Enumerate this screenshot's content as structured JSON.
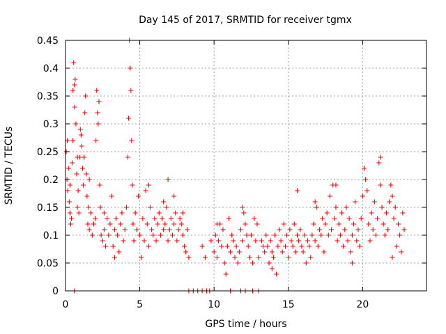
{
  "chart_data": {
    "type": "scatter",
    "title": "Day 145 of 2017, SRMTID for receiver tgmx",
    "xlabel": "GPS time / hours",
    "ylabel": "SRMTID / TECUs",
    "xlim": [
      0,
      24.3
    ],
    "ylim": [
      0,
      0.45
    ],
    "x_ticks": [
      0,
      5,
      10,
      15,
      20
    ],
    "x_tick_labels": [
      "0",
      "5",
      "10",
      "15",
      "20"
    ],
    "y_ticks": [
      0,
      0.05,
      0.1,
      0.15,
      0.2,
      0.25,
      0.3,
      0.35,
      0.4,
      0.45
    ],
    "y_tick_labels": [
      "0",
      "0.05",
      "0.1",
      "0.15",
      "0.2",
      "0.25",
      "0.3",
      "0.35",
      "0.4",
      "0.45"
    ],
    "grid": true,
    "marker_color": "#ff0000",
    "series": [
      {
        "name": "SRMTID",
        "marker": "plus",
        "points": [
          [
            0.05,
            0.25
          ],
          [
            0.1,
            0.2
          ],
          [
            0.12,
            0.27
          ],
          [
            0.15,
            0.18
          ],
          [
            0.2,
            0.22
          ],
          [
            0.25,
            0.16
          ],
          [
            0.3,
            0.19
          ],
          [
            0.35,
            0.12
          ],
          [
            0.4,
            0.13
          ],
          [
            0.45,
            0.23
          ],
          [
            0.5,
            0.27
          ],
          [
            0.5,
            0.36
          ],
          [
            0.55,
            0.41
          ],
          [
            0.6,
            0.37
          ],
          [
            0.62,
            0.33
          ],
          [
            0.65,
            0.38
          ],
          [
            0.7,
            0.3
          ],
          [
            0.75,
            0.21
          ],
          [
            0.8,
            0.15
          ],
          [
            0.85,
            0.18
          ],
          [
            0.9,
            0.14
          ],
          [
            0.95,
            0.24
          ],
          [
            1.0,
            0.29
          ],
          [
            1.05,
            0.28
          ],
          [
            1.1,
            0.26
          ],
          [
            1.15,
            0.22
          ],
          [
            1.2,
            0.19
          ],
          [
            1.25,
            0.24
          ],
          [
            1.3,
            0.32
          ],
          [
            1.35,
            0.35
          ],
          [
            1.4,
            0.21
          ],
          [
            1.45,
            0.17
          ],
          [
            1.5,
            0.12
          ],
          [
            1.55,
            0.15
          ],
          [
            1.6,
            0.11
          ],
          [
            1.7,
            0.14
          ],
          [
            1.8,
            0.1
          ],
          [
            1.9,
            0.12
          ],
          [
            2.0,
            0.13
          ],
          [
            2.05,
            0.27
          ],
          [
            2.1,
            0.36
          ],
          [
            2.15,
            0.32
          ],
          [
            2.2,
            0.3
          ],
          [
            2.25,
            0.34
          ],
          [
            2.3,
            0.19
          ],
          [
            2.35,
            0.15
          ],
          [
            2.4,
            0.1
          ],
          [
            2.5,
            0.09
          ],
          [
            2.6,
            0.11
          ],
          [
            2.7,
            0.08
          ],
          [
            2.8,
            0.13
          ],
          [
            2.9,
            0.1
          ],
          [
            3.0,
            0.12
          ],
          [
            3.1,
            0.17
          ],
          [
            3.2,
            0.08
          ],
          [
            3.3,
            0.11
          ],
          [
            3.4,
            0.13
          ],
          [
            3.5,
            0.1
          ],
          [
            3.6,
            0.07
          ],
          [
            3.7,
            0.12
          ],
          [
            3.8,
            0.14
          ],
          [
            3.9,
            0.09
          ],
          [
            4.0,
            0.11
          ],
          [
            4.1,
            0.15
          ],
          [
            4.2,
            0.24
          ],
          [
            4.25,
            0.31
          ],
          [
            4.3,
            0.45
          ],
          [
            4.35,
            0.4
          ],
          [
            4.4,
            0.36
          ],
          [
            4.45,
            0.27
          ],
          [
            4.5,
            0.19
          ],
          [
            4.55,
            0.12
          ],
          [
            4.6,
            0.09
          ],
          [
            4.7,
            0.14
          ],
          [
            4.8,
            0.11
          ],
          [
            4.9,
            0.17
          ],
          [
            5.0,
            0.1
          ],
          [
            5.1,
            0.06
          ],
          [
            5.2,
            0.13
          ],
          [
            5.3,
            0.09
          ],
          [
            5.4,
            0.18
          ],
          [
            5.5,
            0.12
          ],
          [
            5.6,
            0.08
          ],
          [
            5.7,
            0.15
          ],
          [
            5.8,
            0.11
          ],
          [
            5.9,
            0.1
          ],
          [
            6.0,
            0.13
          ],
          [
            6.1,
            0.09
          ],
          [
            6.2,
            0.12
          ],
          [
            6.3,
            0.14
          ],
          [
            6.4,
            0.1
          ],
          [
            6.5,
            0.13
          ],
          [
            6.6,
            0.11
          ],
          [
            6.7,
            0.12
          ],
          [
            6.8,
            0.15
          ],
          [
            6.9,
            0.09
          ],
          [
            7.0,
            0.11
          ],
          [
            7.1,
            0.13
          ],
          [
            7.2,
            0.1
          ],
          [
            7.3,
            0.12
          ],
          [
            7.4,
            0.14
          ],
          [
            7.5,
            0.09
          ],
          [
            7.6,
            0.11
          ],
          [
            7.7,
            0.13
          ],
          [
            7.8,
            0.12
          ],
          [
            7.9,
            0.1
          ],
          [
            8.0,
            0.08
          ],
          [
            8.1,
            0.07
          ],
          [
            8.2,
            0.11
          ],
          [
            8.3,
            0.06
          ],
          [
            0.3,
            0.14
          ],
          [
            0.8,
            0.24
          ],
          [
            1.6,
            0.2
          ],
          [
            2.6,
            0.14
          ],
          [
            3.3,
            0.06
          ],
          [
            5.6,
            0.19
          ],
          [
            6.6,
            0.16
          ],
          [
            6.9,
            0.2
          ],
          [
            7.3,
            0.17
          ],
          [
            7.9,
            0.14
          ],
          [
            9.2,
            0.08
          ],
          [
            9.4,
            0.06
          ],
          [
            9.8,
            0.09
          ],
          [
            10.0,
            0.07
          ],
          [
            10.1,
            0.1
          ],
          [
            10.2,
            0.06
          ],
          [
            10.3,
            0.09
          ],
          [
            10.4,
            0.12
          ],
          [
            10.5,
            0.08
          ],
          [
            10.6,
            0.11
          ],
          [
            10.7,
            0.05
          ],
          [
            10.8,
            0.03
          ],
          [
            10.9,
            0.08
          ],
          [
            11.0,
            0.13
          ],
          [
            11.1,
            0.07
          ],
          [
            11.2,
            0.1
          ],
          [
            11.3,
            0.09
          ],
          [
            11.4,
            0.06
          ],
          [
            11.5,
            0.08
          ],
          [
            11.6,
            0.05
          ],
          [
            11.7,
            0.07
          ],
          [
            11.8,
            0.11
          ],
          [
            11.9,
            0.09
          ],
          [
            12.0,
            0.14
          ],
          [
            12.1,
            0.12
          ],
          [
            12.2,
            0.1
          ],
          [
            12.3,
            0.08
          ],
          [
            12.4,
            0.06
          ],
          [
            12.5,
            0.1
          ],
          [
            12.6,
            0.05
          ],
          [
            12.7,
            0.13
          ],
          [
            12.8,
            0.09
          ],
          [
            12.9,
            0.12
          ],
          [
            13.0,
            0.06
          ],
          [
            13.2,
            0.09
          ],
          [
            13.3,
            0.08
          ],
          [
            13.4,
            0.07
          ],
          [
            13.5,
            0.1
          ],
          [
            13.6,
            0.08
          ],
          [
            13.7,
            0.05
          ],
          [
            13.8,
            0.09
          ],
          [
            13.9,
            0.07
          ],
          [
            14.0,
            0.06
          ],
          [
            14.1,
            0.1
          ],
          [
            14.2,
            0.03
          ],
          [
            14.3,
            0.08
          ],
          [
            14.4,
            0.11
          ],
          [
            14.5,
            0.09
          ],
          [
            14.6,
            0.07
          ],
          [
            14.7,
            0.12
          ],
          [
            14.8,
            0.08
          ],
          [
            14.9,
            0.1
          ],
          [
            15.0,
            0.06
          ],
          [
            15.1,
            0.11
          ],
          [
            15.2,
            0.09
          ],
          [
            15.3,
            0.08
          ],
          [
            15.4,
            0.12
          ],
          [
            15.5,
            0.07
          ],
          [
            15.6,
            0.1
          ],
          [
            15.7,
            0.09
          ],
          [
            15.8,
            0.11
          ],
          [
            15.9,
            0.08
          ],
          [
            16.0,
            0.07
          ],
          [
            16.1,
            0.1
          ],
          [
            16.2,
            0.05
          ],
          [
            16.3,
            0.09
          ],
          [
            16.4,
            0.08
          ],
          [
            16.5,
            0.06
          ],
          [
            16.6,
            0.1
          ],
          [
            16.7,
            0.12
          ],
          [
            16.8,
            0.09
          ],
          [
            16.9,
            0.15
          ],
          [
            17.0,
            0.08
          ],
          [
            17.1,
            0.11
          ],
          [
            17.2,
            0.1
          ],
          [
            17.3,
            0.13
          ],
          [
            17.4,
            0.07
          ],
          [
            17.5,
            0.12
          ],
          [
            17.6,
            0.14
          ],
          [
            17.7,
            0.1
          ],
          [
            17.8,
            0.17
          ],
          [
            17.9,
            0.11
          ],
          [
            18.0,
            0.19
          ],
          [
            18.1,
            0.13
          ],
          [
            18.2,
            0.15
          ],
          [
            18.3,
            0.09
          ],
          [
            18.4,
            0.12
          ],
          [
            18.5,
            0.1
          ],
          [
            18.6,
            0.14
          ],
          [
            18.7,
            0.08
          ],
          [
            18.8,
            0.11
          ],
          [
            18.9,
            0.15
          ],
          [
            19.0,
            0.09
          ],
          [
            19.1,
            0.13
          ],
          [
            19.2,
            0.07
          ],
          [
            19.3,
            0.1
          ],
          [
            19.4,
            0.12
          ],
          [
            19.5,
            0.16
          ],
          [
            19.6,
            0.09
          ],
          [
            19.7,
            0.11
          ],
          [
            19.8,
            0.08
          ],
          [
            19.9,
            0.13
          ],
          [
            20.0,
            0.17
          ],
          [
            20.1,
            0.22
          ],
          [
            20.2,
            0.2
          ],
          [
            20.3,
            0.18
          ],
          [
            20.4,
            0.12
          ],
          [
            20.5,
            0.09
          ],
          [
            20.6,
            0.14
          ],
          [
            20.7,
            0.11
          ],
          [
            20.8,
            0.16
          ],
          [
            20.9,
            0.1
          ],
          [
            21.0,
            0.13
          ],
          [
            21.1,
            0.23
          ],
          [
            21.2,
            0.19
          ],
          [
            21.3,
            0.15
          ],
          [
            21.4,
            0.12
          ],
          [
            21.5,
            0.1
          ],
          [
            21.6,
            0.14
          ],
          [
            21.7,
            0.11
          ],
          [
            21.8,
            0.16
          ],
          [
            21.9,
            0.19
          ],
          [
            22.0,
            0.17
          ],
          [
            22.1,
            0.13
          ],
          [
            22.2,
            0.15
          ],
          [
            22.3,
            0.08
          ],
          [
            22.4,
            0.12
          ],
          [
            22.5,
            0.1
          ],
          [
            22.6,
            0.07
          ],
          [
            22.7,
            0.14
          ],
          [
            22.8,
            0.11
          ],
          [
            15.6,
            0.18
          ],
          [
            16.8,
            0.16
          ],
          [
            18.2,
            0.19
          ],
          [
            19.3,
            0.05
          ],
          [
            21.2,
            0.24
          ],
          [
            22.0,
            0.06
          ],
          [
            13.9,
            0.04
          ],
          [
            11.9,
            0.15
          ],
          [
            10.2,
            0.12
          ],
          [
            0.6,
            0.0
          ],
          [
            8.3,
            0.0
          ],
          [
            8.6,
            0.0
          ],
          [
            8.9,
            0.0
          ],
          [
            9.2,
            0.0
          ],
          [
            9.5,
            0.0
          ],
          [
            9.7,
            0.0
          ],
          [
            11.1,
            0.0
          ],
          [
            11.8,
            0.0
          ],
          [
            12.1,
            0.0
          ],
          [
            12.6,
            0.0
          ],
          [
            13.0,
            0.0
          ]
        ]
      }
    ]
  }
}
